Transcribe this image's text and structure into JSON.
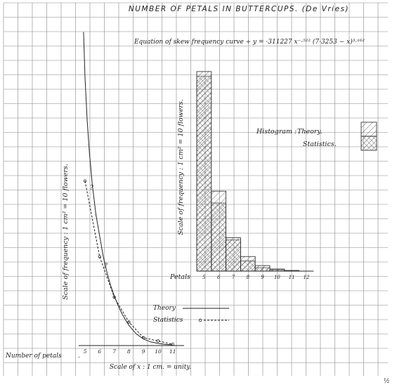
{
  "title": "NUMBER OF PETALS IN BUTTERCUPS. (De Vries)",
  "equation": "Equation of skew frequency curve ÷ y = ·311227 x⁻·⁵²² (7·3253 − x)³·¹⁶²",
  "page_mark": "½",
  "chart_data": [
    {
      "type": "line",
      "subtype": "skew-frequency-curve",
      "xlabel": "Scale of x : 1 cm. = unity.",
      "ylabel": "Scale of frequency : 1 cm² = 10 flowers.",
      "x_axis_label": "Number of petals",
      "x_ticks": [
        "5",
        "6",
        "7",
        "8",
        "9",
        "10",
        "11"
      ],
      "series": [
        {
          "name": "Theory",
          "style": "solid",
          "x": [
            4.9,
            5.0,
            5.15,
            5.3,
            5.5,
            5.75,
            6.0,
            6.25,
            6.5,
            6.75,
            7.0,
            7.25,
            7.5,
            7.75,
            8.0,
            8.5,
            9.0,
            9.5,
            10.0,
            10.5,
            11.0
          ],
          "y": [
            24.0,
            20.5,
            17.2,
            14.8,
            12.3,
            10.0,
            8.4,
            6.8,
            5.6,
            4.6,
            3.8,
            3.1,
            2.5,
            2.0,
            1.55,
            0.9,
            0.5,
            0.28,
            0.16,
            0.09,
            0.05
          ]
        },
        {
          "name": "Statistics",
          "style": "dashed",
          "x": [
            5,
            6,
            7,
            8,
            9,
            10,
            11
          ],
          "y": [
            12.6,
            6.8,
            3.7,
            1.8,
            0.6,
            0.35,
            0.1
          ]
        }
      ],
      "annotations": [
        "?",
        "?"
      ],
      "legend": {
        "position": "bottom-center",
        "entries": [
          "Theory",
          "Statistics"
        ]
      },
      "grid": true
    },
    {
      "type": "bar",
      "subtype": "histogram",
      "xlabel": "Petals",
      "ylabel": "Scale of frequency : 1 cm² = 10 flowers.",
      "categories": [
        "5",
        "6",
        "7",
        "8",
        "9",
        "10",
        "11",
        "12"
      ],
      "series": [
        {
          "name": "Theory",
          "pattern": "hatched-single",
          "values": [
            287,
            115,
            48,
            21,
            8,
            3,
            1,
            0
          ]
        },
        {
          "name": "Statistics",
          "pattern": "hatched-cross",
          "values": [
            280,
            98,
            45,
            15,
            5,
            2,
            0,
            0
          ]
        }
      ],
      "legend": {
        "title": "Histogram :",
        "position": "right",
        "entries": [
          "Theory.",
          "Statistics."
        ]
      },
      "grid": true
    }
  ]
}
